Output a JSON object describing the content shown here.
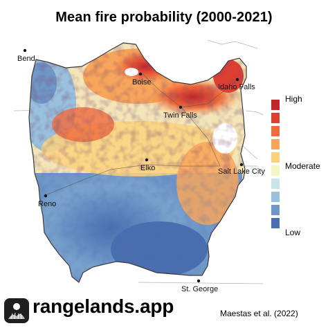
{
  "title": "Mean fire probability (2000-2021)",
  "legend": {
    "high_label": "High",
    "moderate_label": "Moderate",
    "low_label": "Low",
    "colors": [
      "#c2252a",
      "#df3f31",
      "#ef6a3c",
      "#f8a55c",
      "#fbd27c",
      "#f2f6c4",
      "#cbe3ea",
      "#99c0dd",
      "#6f97c7",
      "#4a6fb0"
    ]
  },
  "cities": [
    {
      "id": "bend",
      "name": "Bend"
    },
    {
      "id": "boise",
      "name": "Boise"
    },
    {
      "id": "idaho-falls",
      "name": "Idaho Falls"
    },
    {
      "id": "twin-falls",
      "name": "Twin Falls"
    },
    {
      "id": "elko",
      "name": "Elko"
    },
    {
      "id": "salt-lake-city",
      "name": "Salt Lake City"
    },
    {
      "id": "reno",
      "name": "Reno"
    },
    {
      "id": "st-george",
      "name": "St. George"
    }
  ],
  "footer": {
    "brand": "rangelands.app",
    "citation": "Maestas et al. (2022)"
  }
}
